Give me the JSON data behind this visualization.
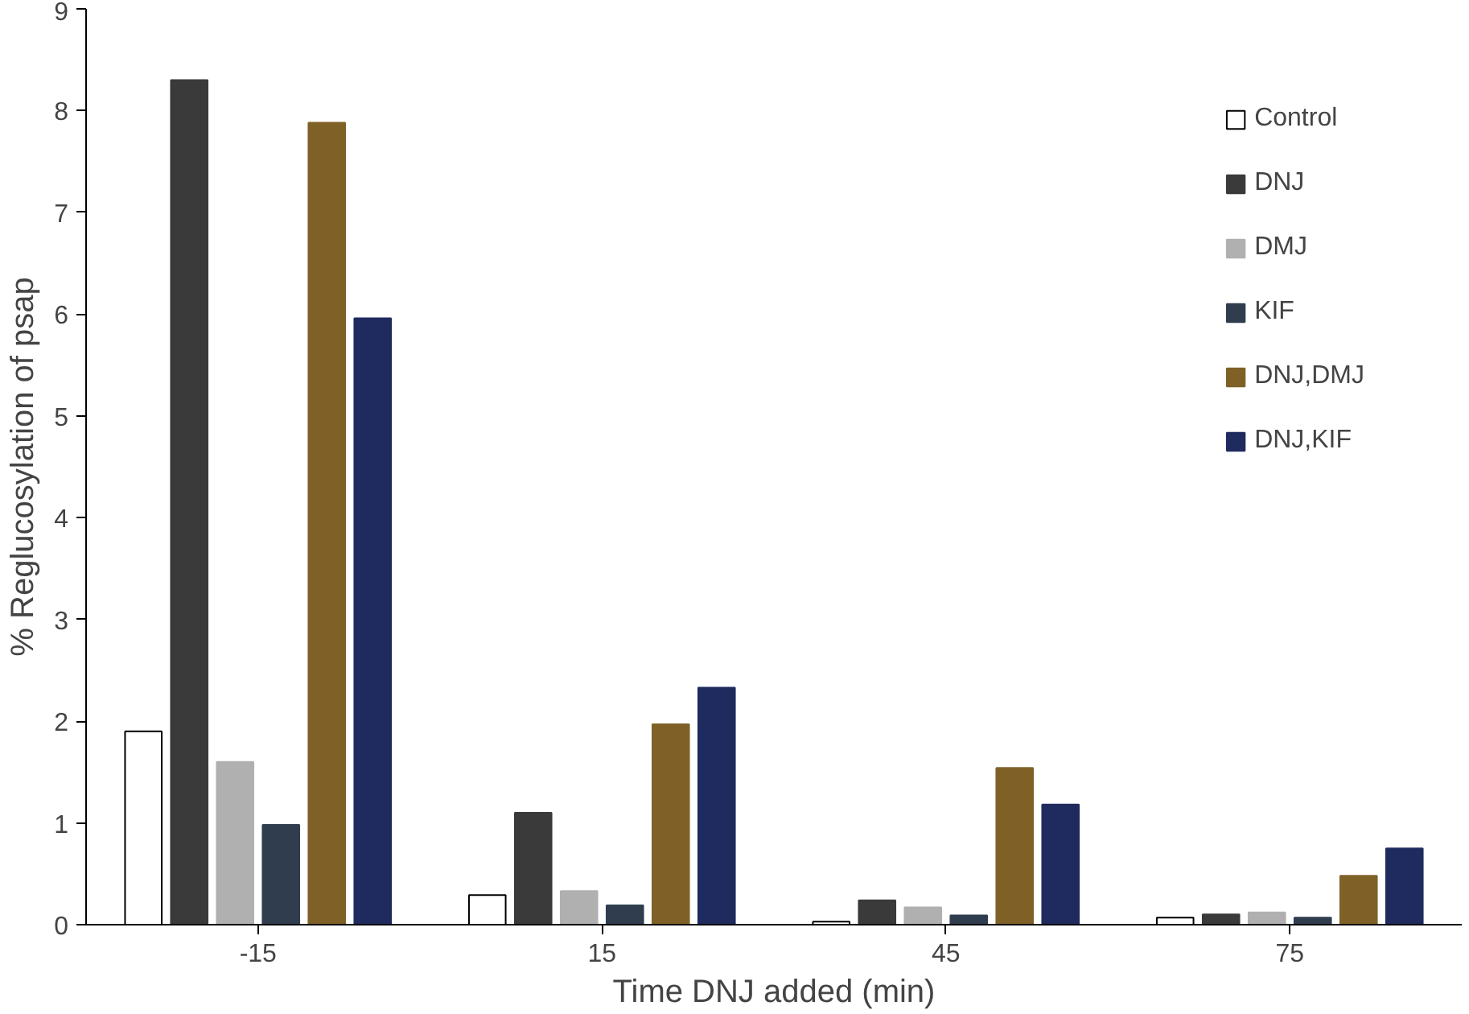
{
  "chart_data": {
    "type": "bar",
    "xlabel": "Time DNJ added (min)",
    "ylabel": "% Reglucosylation of psap",
    "categories": [
      "-15",
      "15",
      "45",
      "75"
    ],
    "ylim": [
      0,
      9
    ],
    "yticks": [
      0,
      1,
      2,
      3,
      4,
      5,
      6,
      7,
      8,
      9
    ],
    "grid": false,
    "legend": "top right",
    "series": [
      {
        "name": "Control",
        "color": "#ffffff",
        "values": [
          1.9,
          0.29,
          0.03,
          0.07
        ]
      },
      {
        "name": "DNJ",
        "color": "#3a3a3a",
        "values": [
          8.3,
          1.1,
          0.24,
          0.1
        ]
      },
      {
        "name": "DMJ",
        "color": "#b0b0b0",
        "values": [
          1.6,
          0.33,
          0.17,
          0.12
        ]
      },
      {
        "name": "KIF",
        "color": "#2f3d4f",
        "values": [
          0.98,
          0.19,
          0.09,
          0.07
        ]
      },
      {
        "name": "DNJ,DMJ",
        "color": "#7f6128",
        "values": [
          7.88,
          1.97,
          1.54,
          0.48
        ]
      },
      {
        "name": "DNJ,KIF",
        "color": "#1f2a5e",
        "values": [
          5.96,
          2.33,
          1.18,
          0.75
        ]
      }
    ]
  }
}
